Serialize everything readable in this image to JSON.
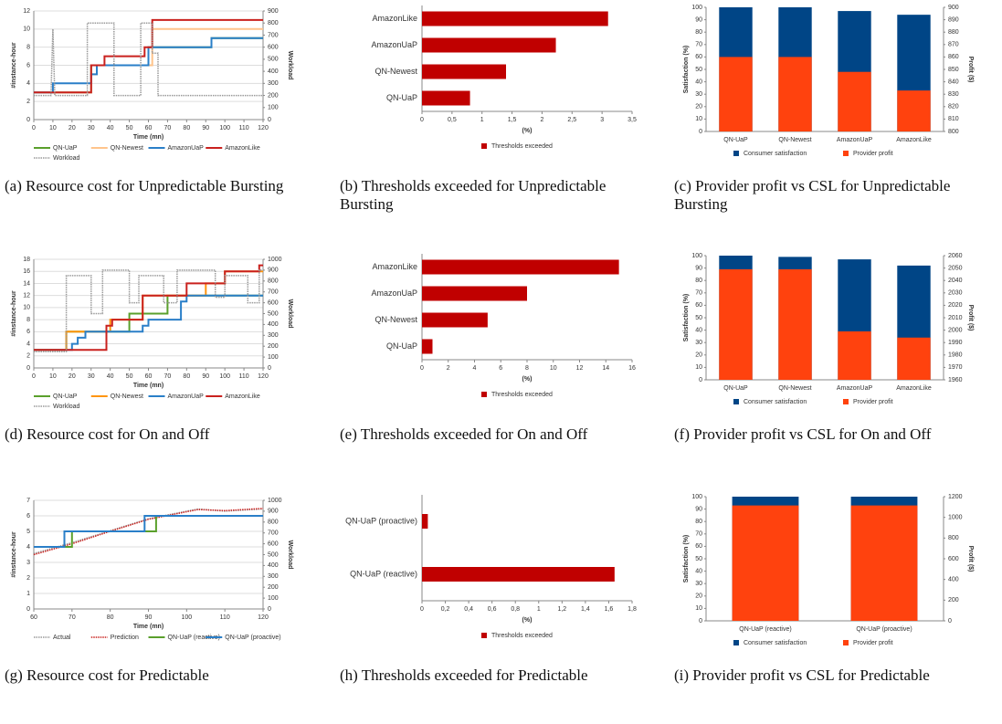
{
  "chart_data": [
    {
      "type": "line",
      "caption": "(a) Resource cost for Unpredictable Bursting",
      "xlabel": "Time (mn)",
      "ylabel": "#instance-hour",
      "y2label": "Workload",
      "grid": true,
      "xlim": [
        0,
        120
      ],
      "xticks": [
        0,
        10,
        20,
        30,
        40,
        50,
        60,
        70,
        80,
        90,
        100,
        110,
        120
      ],
      "ylim": [
        0,
        12
      ],
      "yticks": [
        0,
        2,
        4,
        6,
        8,
        10,
        12
      ],
      "y2lim": [
        0,
        900
      ],
      "y2ticks": [
        0,
        100,
        200,
        300,
        400,
        500,
        600,
        700,
        800,
        900
      ],
      "series": [
        {
          "name": "QN-UaP",
          "color": "#5aa02c",
          "x": [
            0,
            30,
            30,
            60,
            60,
            93,
            93,
            120
          ],
          "values": [
            3,
            3,
            6,
            6,
            8,
            8,
            9,
            9
          ]
        },
        {
          "name": "QN-Newest",
          "color": "#ffc48c",
          "x": [
            0,
            30,
            30,
            33,
            33,
            62,
            62,
            120
          ],
          "values": [
            3,
            3,
            5,
            5,
            6,
            6,
            10,
            10
          ]
        },
        {
          "name": "AmazonUaP",
          "color": "#2a7fc8",
          "x": [
            0,
            10,
            10,
            30,
            30,
            33,
            33,
            60,
            60,
            93,
            93,
            120
          ],
          "values": [
            3,
            3,
            4,
            4,
            5,
            5,
            6,
            6,
            8,
            8,
            9,
            9
          ]
        },
        {
          "name": "AmazonLike",
          "color": "#c9211e",
          "x": [
            0,
            30,
            30,
            37,
            37,
            58,
            58,
            62,
            62,
            120
          ],
          "values": [
            3,
            3,
            6,
            6,
            7,
            7,
            8,
            8,
            11,
            11
          ]
        },
        {
          "name": "Workload",
          "color": "#999999",
          "style": "dotted",
          "axis": "y2",
          "x": [
            0,
            9,
            10,
            11,
            28,
            28,
            42,
            42,
            56,
            56,
            62,
            62,
            65,
            65,
            120
          ],
          "values": [
            200,
            200,
            750,
            200,
            200,
            800,
            800,
            200,
            200,
            800,
            800,
            550,
            550,
            200,
            200
          ]
        }
      ]
    },
    {
      "type": "hbar",
      "caption": "(b) Thresholds exceeded for Unpredictable Bursting",
      "xlabel": "(%)",
      "categories": [
        "AmazonLike",
        "AmazonUaP",
        "QN-Newest",
        "QN-UaP"
      ],
      "xlim": [
        0,
        3.5
      ],
      "xticks": [
        0,
        {
          "value": 0.5,
          "label": "0,5"
        },
        1,
        {
          "value": 1.5,
          "label": "1,5"
        },
        2,
        {
          "value": 2.5,
          "label": "2,5"
        },
        3,
        {
          "value": 3.5,
          "label": "3,5"
        }
      ],
      "series": [
        {
          "name": "Thresholds exceeded",
          "color": "#c00000",
          "values": [
            3.1,
            2.23,
            1.4,
            0.8
          ]
        }
      ]
    },
    {
      "type": "bar",
      "caption": "(c) Provider profit vs CSL for Unpredictable Bursting",
      "ylabel": "Satisfaction (%)",
      "y2label": "Profit ($)",
      "categories": [
        "QN-UaP",
        "QN-Newest",
        "AmazonUaP",
        "AmazonLike"
      ],
      "ylim": [
        0,
        100
      ],
      "yticks": [
        0,
        10,
        20,
        30,
        40,
        50,
        60,
        70,
        80,
        90,
        100
      ],
      "y2lim": [
        800,
        900
      ],
      "y2ticks": [
        800,
        810,
        820,
        830,
        840,
        850,
        860,
        870,
        880,
        890,
        900
      ],
      "series": [
        {
          "name": "Consumer satisfaction",
          "color": "#004586",
          "values": [
            100,
            100,
            97,
            94
          ]
        },
        {
          "name": "Provider profit",
          "color": "#ff420e",
          "axis": "y2",
          "values": [
            860,
            860,
            848,
            833
          ]
        }
      ]
    },
    {
      "type": "line",
      "caption": "(d) Resource cost for On and Off",
      "xlabel": "Time (mn)",
      "ylabel": "#instance-hour",
      "y2label": "Workload",
      "grid": true,
      "xlim": [
        0,
        120
      ],
      "xticks": [
        0,
        10,
        20,
        30,
        40,
        50,
        60,
        70,
        80,
        90,
        100,
        110,
        120
      ],
      "ylim": [
        0,
        18
      ],
      "yticks": [
        0,
        2,
        4,
        6,
        8,
        10,
        12,
        14,
        16,
        18
      ],
      "y2lim": [
        0,
        1000
      ],
      "y2ticks": [
        0,
        100,
        200,
        300,
        400,
        500,
        600,
        700,
        800,
        900,
        1000
      ],
      "series": [
        {
          "name": "QN-UaP",
          "color": "#5aa02c",
          "x": [
            0,
            17,
            17,
            50,
            50,
            70,
            70,
            120
          ],
          "values": [
            3,
            3,
            6,
            6,
            9,
            9,
            12,
            12
          ]
        },
        {
          "name": "QN-Newest",
          "color": "#ff950e",
          "x": [
            0,
            17,
            17,
            40,
            40,
            57,
            57,
            90,
            90,
            100,
            100,
            120
          ],
          "values": [
            3,
            3,
            6,
            6,
            8,
            8,
            12,
            12,
            14,
            14,
            16,
            16
          ]
        },
        {
          "name": "AmazonUaP",
          "color": "#2a7fc8",
          "x": [
            0,
            20,
            20,
            23,
            23,
            27,
            27,
            57,
            57,
            60,
            60,
            77,
            77,
            80,
            80,
            120
          ],
          "values": [
            3,
            3,
            4,
            4,
            5,
            5,
            6,
            6,
            7,
            7,
            8,
            8,
            11,
            11,
            12,
            12
          ]
        },
        {
          "name": "AmazonLike",
          "color": "#c9211e",
          "x": [
            0,
            38,
            38,
            41,
            41,
            57,
            57,
            80,
            80,
            100,
            100,
            118,
            118,
            120
          ],
          "values": [
            3,
            3,
            7,
            7,
            8,
            8,
            12,
            12,
            14,
            14,
            16,
            16,
            17,
            17
          ]
        },
        {
          "name": "Workload",
          "color": "#999999",
          "style": "dotted",
          "axis": "y2",
          "x": [
            0,
            17,
            17,
            30,
            30,
            36,
            36,
            50,
            50,
            55,
            55,
            68,
            68,
            75,
            75,
            95,
            95,
            100,
            100,
            112,
            112,
            118,
            118,
            120
          ],
          "values": [
            150,
            150,
            850,
            850,
            500,
            500,
            900,
            900,
            600,
            600,
            850,
            850,
            600,
            600,
            900,
            900,
            650,
            650,
            850,
            850,
            600,
            600,
            900,
            900
          ]
        }
      ]
    },
    {
      "type": "hbar",
      "caption": "(e) Thresholds exceeded for On and Off",
      "xlabel": "(%)",
      "categories": [
        "AmazonLike",
        "AmazonUaP",
        "QN-Newest",
        "QN-UaP"
      ],
      "xlim": [
        0,
        16
      ],
      "xticks": [
        0,
        2,
        4,
        6,
        8,
        10,
        12,
        14,
        16
      ],
      "series": [
        {
          "name": "Thresholds exceeded",
          "color": "#c00000",
          "values": [
            15,
            8,
            5,
            0.8
          ]
        }
      ]
    },
    {
      "type": "bar",
      "caption": "(f) Provider profit vs CSL for On and Off",
      "ylabel": "Satisfaction (%)",
      "y2label": "Profit ($)",
      "categories": [
        "QN-UaP",
        "QN-Newest",
        "AmazonUaP",
        "AmazonLike"
      ],
      "ylim": [
        0,
        100
      ],
      "yticks": [
        0,
        10,
        20,
        30,
        40,
        50,
        60,
        70,
        80,
        90,
        100
      ],
      "y2lim": [
        1960,
        2060
      ],
      "y2ticks": [
        1960,
        1970,
        1980,
        1990,
        2000,
        2010,
        2020,
        2030,
        2040,
        2050,
        2060
      ],
      "series": [
        {
          "name": "Consumer satisfaction",
          "color": "#004586",
          "values": [
            100,
            99,
            97,
            92
          ]
        },
        {
          "name": "Provider profit",
          "color": "#ff420e",
          "axis": "y2",
          "values": [
            2049,
            2049,
            1999,
            1994
          ]
        }
      ]
    },
    {
      "type": "line",
      "caption": "(g) Resource cost for Predictable",
      "xlabel": "Time (mn)",
      "ylabel": "#instance-hour",
      "y2label": "Workload",
      "grid": true,
      "xlim": [
        60,
        120
      ],
      "xticks": [
        60,
        70,
        80,
        90,
        100,
        110,
        120
      ],
      "ylim": [
        0,
        7
      ],
      "yticks": [
        0,
        1,
        2,
        3,
        4,
        5,
        6,
        7
      ],
      "y2lim": [
        0,
        1000
      ],
      "y2ticks": [
        0,
        100,
        200,
        300,
        400,
        500,
        600,
        700,
        800,
        900,
        1000
      ],
      "series": [
        {
          "name": "Actual",
          "color": "#999999",
          "style": "dotted",
          "axis": "y2",
          "x": [
            60,
            70,
            80,
            90,
            100,
            103,
            110,
            120
          ],
          "values": [
            510,
            610,
            720,
            830,
            900,
            920,
            900,
            920
          ]
        },
        {
          "name": "Prediction",
          "color": "#c9211e",
          "style": "dotted",
          "axis": "y2",
          "x": [
            60,
            70,
            80,
            90,
            100,
            103,
            110,
            120
          ],
          "values": [
            500,
            600,
            715,
            825,
            895,
            915,
            905,
            925
          ]
        },
        {
          "name": "QN-UaP (reactive)",
          "color": "#5aa02c",
          "x": [
            60,
            70,
            70,
            92,
            92,
            120
          ],
          "values": [
            4,
            4,
            5,
            5,
            6,
            6
          ]
        },
        {
          "name": "QN-UaP (proactive)",
          "color": "#2a7fc8",
          "x": [
            60,
            68,
            68,
            89,
            89,
            120
          ],
          "values": [
            4,
            4,
            5,
            5,
            6,
            6
          ]
        }
      ]
    },
    {
      "type": "hbar",
      "caption": "(h) Thresholds exceeded for Predictable",
      "xlabel": "(%)",
      "categories": [
        "QN-UaP (proactive)",
        "QN-UaP (reactive)"
      ],
      "xlim": [
        0,
        1.8
      ],
      "xticks": [
        0,
        {
          "value": 0.2,
          "label": "0,2"
        },
        {
          "value": 0.4,
          "label": "0,4"
        },
        {
          "value": 0.6,
          "label": "0,6"
        },
        {
          "value": 0.8,
          "label": "0,8"
        },
        1,
        {
          "value": 1.2,
          "label": "1,2"
        },
        {
          "value": 1.4,
          "label": "1,4"
        },
        {
          "value": 1.6,
          "label": "1,6"
        },
        {
          "value": 1.8,
          "label": "1,8"
        }
      ],
      "series": [
        {
          "name": "Thresholds exceeded",
          "color": "#c00000",
          "values": [
            0.05,
            1.65
          ]
        }
      ]
    },
    {
      "type": "bar",
      "caption": "(i) Provider profit vs CSL for Predictable",
      "ylabel": "Satisfaction (%)",
      "y2label": "Profit ($)",
      "categories": [
        "QN-UaP (reactive)",
        "QN-UaP (proactive)"
      ],
      "ylim": [
        0,
        100
      ],
      "yticks": [
        0,
        10,
        20,
        30,
        40,
        50,
        60,
        70,
        80,
        90,
        100
      ],
      "y2lim": [
        0,
        1200
      ],
      "y2ticks": [
        0,
        200,
        400,
        600,
        800,
        1000,
        1200
      ],
      "series": [
        {
          "name": "Consumer satisfaction",
          "color": "#004586",
          "values": [
            100,
            100
          ]
        },
        {
          "name": "Provider profit",
          "color": "#ff420e",
          "axis": "y2",
          "values": [
            1115,
            1115
          ]
        }
      ]
    }
  ]
}
